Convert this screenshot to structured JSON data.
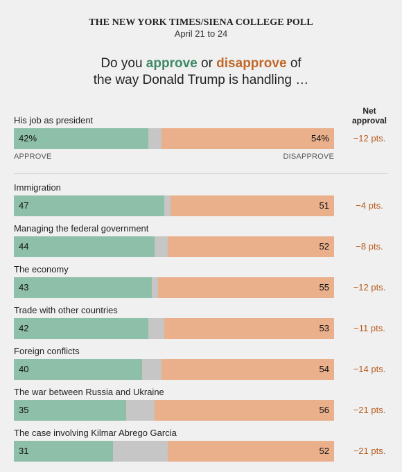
{
  "header": {
    "kicker": "THE NEW YORK TIMES/SIENA COLLEGE POLL",
    "dates": "April 21 to 24",
    "headline_pre": "Do you ",
    "headline_approve": "approve",
    "headline_mid": " or ",
    "headline_disapprove": "disapprove",
    "headline_post": " of",
    "headline_line2": "the way Donald Trump is handling …"
  },
  "net_header": {
    "line1": "Net",
    "line2": "approval"
  },
  "axis": {
    "approve_label": "APPROVE",
    "disapprove_label": "DISAPPROVE"
  },
  "colors": {
    "approve": "#8ebfa8",
    "neutral": "#c6c6c6",
    "disapprove": "#eaaf8b",
    "net_text": "#b85a1c"
  },
  "chart_data": {
    "type": "bar",
    "stacked": true,
    "orientation": "horizontal",
    "series": [
      {
        "name": "APPROVE",
        "values": [
          42,
          47,
          44,
          43,
          42,
          40,
          35,
          31
        ]
      },
      {
        "name": "DISAPPROVE",
        "values": [
          54,
          51,
          52,
          55,
          53,
          54,
          56,
          52
        ]
      }
    ],
    "rows": [
      {
        "label": "His job as president",
        "approve": 42,
        "approve_text": "42%",
        "disapprove": 54,
        "disapprove_text": "54%",
        "net": "−12 pts."
      },
      {
        "label": "Immigration",
        "approve": 47,
        "approve_text": "47",
        "disapprove": 51,
        "disapprove_text": "51",
        "net": "−4 pts."
      },
      {
        "label": "Managing the federal government",
        "approve": 44,
        "approve_text": "44",
        "disapprove": 52,
        "disapprove_text": "52",
        "net": "−8 pts."
      },
      {
        "label": "The economy",
        "approve": 43,
        "approve_text": "43",
        "disapprove": 55,
        "disapprove_text": "55",
        "net": "−12 pts."
      },
      {
        "label": "Trade with other countries",
        "approve": 42,
        "approve_text": "42",
        "disapprove": 53,
        "disapprove_text": "53",
        "net": "−11 pts."
      },
      {
        "label": "Foreign conflicts",
        "approve": 40,
        "approve_text": "40",
        "disapprove": 54,
        "disapprove_text": "54",
        "net": "−14 pts."
      },
      {
        "label": "The war between Russia and Ukraine",
        "approve": 35,
        "approve_text": "35",
        "disapprove": 56,
        "disapprove_text": "56",
        "net": "−21 pts."
      },
      {
        "label": "The case involving Kilmar Abrego Garcia",
        "approve": 31,
        "approve_text": "31",
        "disapprove": 52,
        "disapprove_text": "52",
        "net": "−21 pts."
      }
    ]
  }
}
